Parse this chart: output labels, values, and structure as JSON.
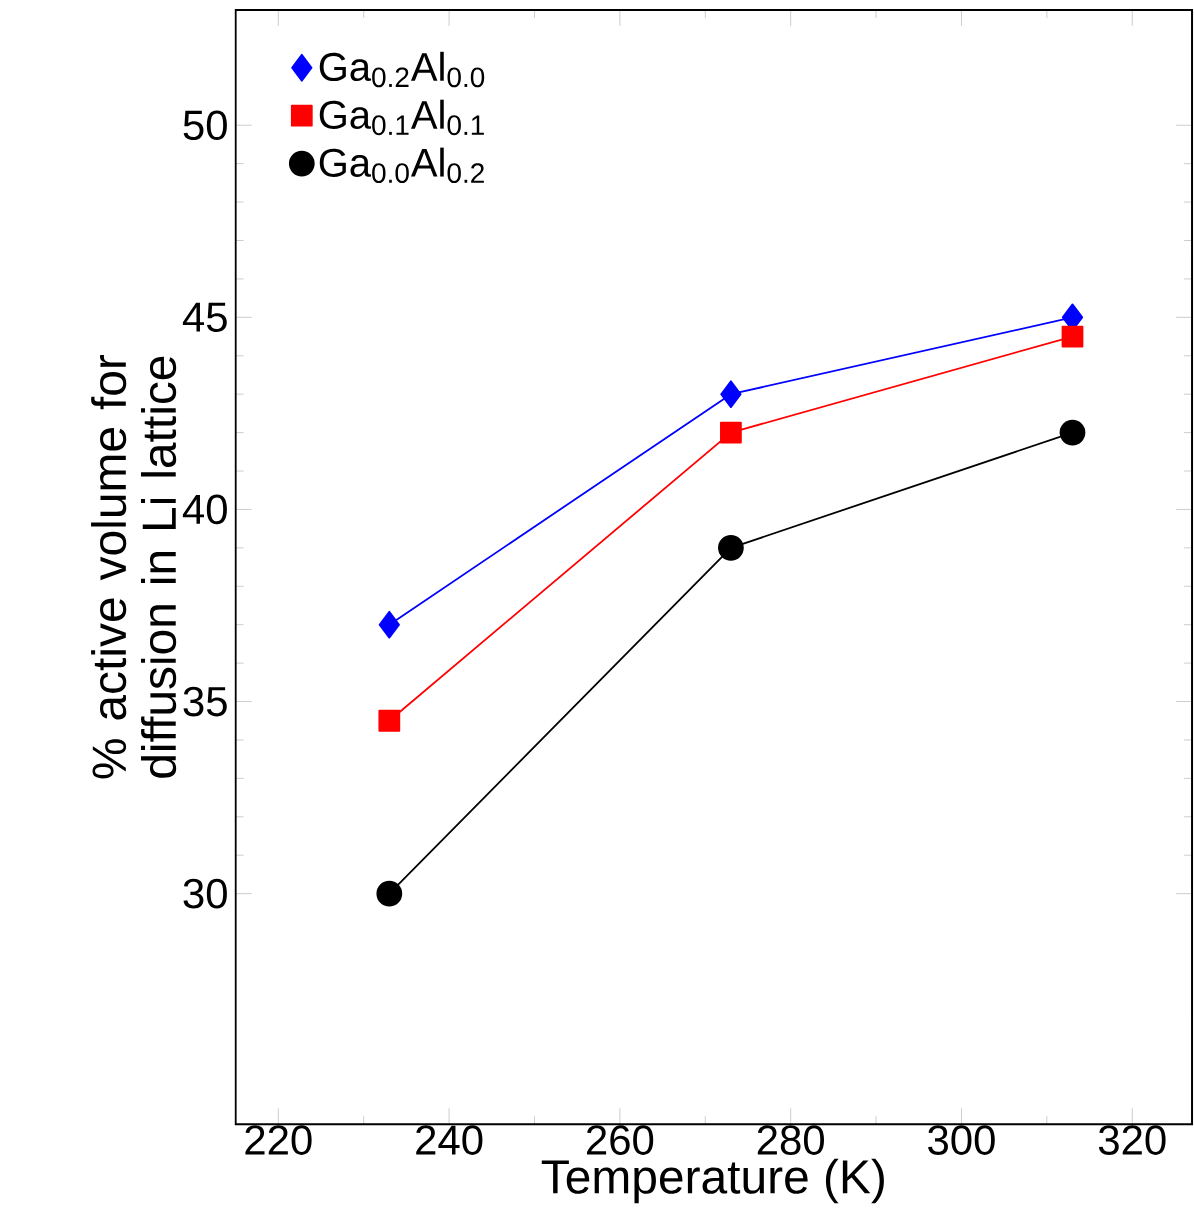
{
  "chart_data": {
    "type": "line",
    "xlabel": "Temperature (K)",
    "ylabel": "% active volume for diffusion in Li lattice",
    "xlim": [
      215,
      327
    ],
    "ylim": [
      24,
      53
    ],
    "xticks": [
      220,
      240,
      260,
      280,
      300,
      320
    ],
    "yticks": [
      30,
      35,
      40,
      45,
      50
    ],
    "legend": "top left",
    "line_style": "solid",
    "series": [
      {
        "name": "Ga$_{0.2}$Al$_{0.0}$",
        "color": "#0000ff",
        "marker": "diamond",
        "x": [
          233,
          273,
          313
        ],
        "values": [
          37,
          43,
          45
        ]
      },
      {
        "name": "Ga$_{0.1}$Al$_{0.1}$",
        "color": "#ff0000",
        "marker": "square",
        "x": [
          233,
          273,
          313
        ],
        "values": [
          34.5,
          42,
          44.5
        ]
      },
      {
        "name": "Ga$_{0.0}$Al$_{0.2}$",
        "color": "#000000",
        "marker": "circle",
        "x": [
          233,
          273,
          313
        ],
        "values": [
          30,
          39,
          42
        ]
      }
    ]
  }
}
